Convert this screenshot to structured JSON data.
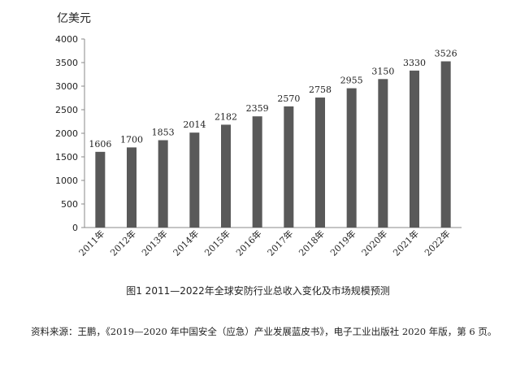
{
  "chart_data": {
    "type": "bar",
    "ylabel": "亿美元",
    "ylim": [
      0,
      4000
    ],
    "yticks": [
      0,
      500,
      1000,
      1500,
      2000,
      2500,
      3000,
      3500,
      4000
    ],
    "categories": [
      "2011年",
      "2012年",
      "2013年",
      "2014年",
      "2015年",
      "2016年",
      "2017年",
      "2018年",
      "2019年",
      "2020年",
      "2021年",
      "2022年"
    ],
    "values": [
      1606,
      1700,
      1853,
      2014,
      2182,
      2359,
      2570,
      2758,
      2955,
      3150,
      3330,
      3526
    ],
    "bar_color": "#595959",
    "grid": false,
    "legend": "none"
  },
  "caption": "图1 2011—2022年全球安防行业总收入变化及市场规模预测",
  "source_note": "资料来源：王鹏，《2019—2020 年中国安全（应急）产业发展蓝皮书》，电子工业出版社 2020 年版，第 6 页。"
}
